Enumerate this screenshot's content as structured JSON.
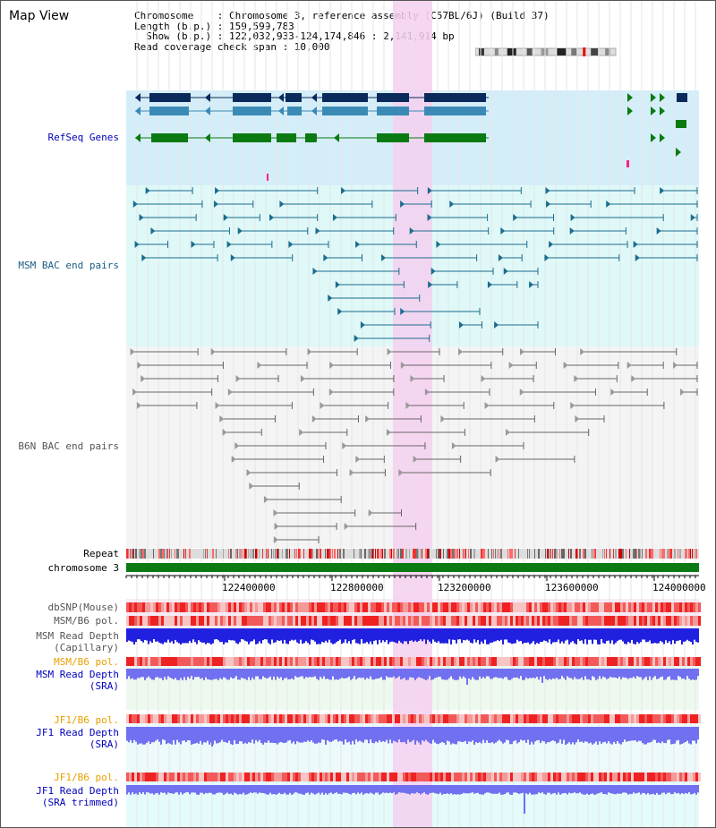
{
  "window": {
    "title": "Map View"
  },
  "info": {
    "line1": "Chromosome    : Chromosome 3, reference assembly (C57BL/6J) (Build 37)",
    "line2": "Length (b.p.) : 159,599,783",
    "line3": "  Show (b.p.) : 122,032,933-124,174,846 : 2,141,914 bp",
    "line4": "Read coverage check span : 10,000"
  },
  "tracks": {
    "refseq": "RefSeq Genes",
    "msm_bac": "MSM BAC end pairs",
    "b6n_bac": "B6N BAC end pairs",
    "repeat": "Repeat",
    "chromosome": "chromosome 3",
    "dbsnp": "dbSNP(Mouse)",
    "msm_pol_1": "MSM/B6 pol.",
    "msm_depth_cap_1": "MSM Read Depth",
    "msm_depth_cap_2": "(Capillary)",
    "msm_pol_2": "MSM/B6 pol.",
    "msm_depth_sra_1": "MSM Read Depth",
    "msm_depth_sra_2": "(SRA)",
    "jf1_pol_1": "JF1/B6 pol.",
    "jf1_depth_1": "JF1 Read Depth",
    "jf1_depth_2": "(SRA)",
    "jf1_pol_2": "JF1/B6 pol.",
    "jf1_trim_1": "JF1 Read Depth",
    "jf1_trim_2": "(SRA trimmed)"
  },
  "axis": {
    "ticks": [
      "122400000",
      "122800000",
      "123200000",
      "123600000",
      "124000000"
    ]
  },
  "colors": {
    "highlight": "#f4d0f0",
    "refseq_bg": "#d4eef9",
    "msm_bg": "#dff8f8",
    "b6n_bg": "#f4f4f4",
    "gene_dark": "#0b2a5c",
    "gene_mid": "#3b8ab5",
    "gene_green": "#0b7a12",
    "chromosome_bar": "#0b7a12",
    "depth_blue": "#2020e0",
    "depth_light": "#7070f0"
  }
}
